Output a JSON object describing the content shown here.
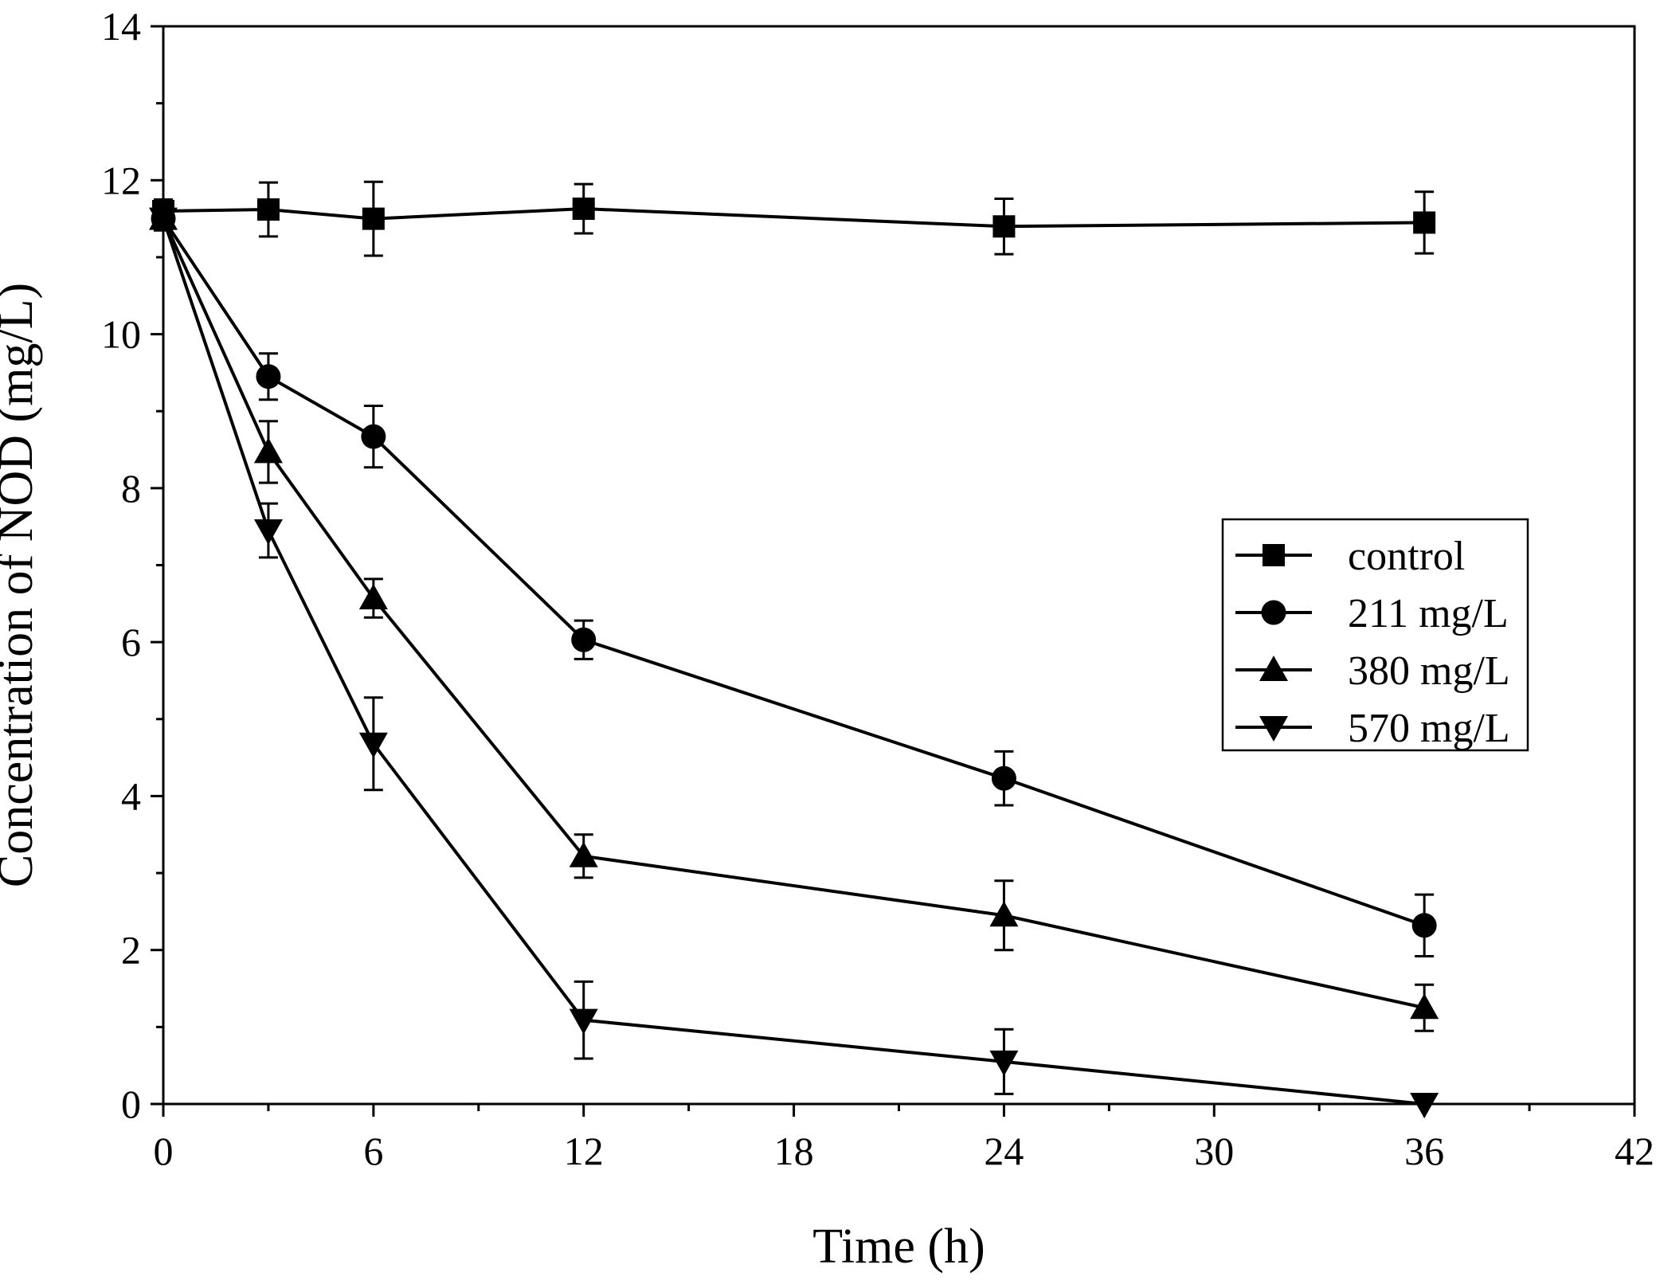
{
  "chart_data": {
    "type": "line",
    "title": "",
    "xlabel": "Time (h)",
    "ylabel": "Concentration of NOD (mg/L)",
    "xlim": [
      0,
      42
    ],
    "ylim": [
      0,
      14
    ],
    "xticks": [
      0,
      6,
      12,
      18,
      24,
      30,
      36,
      42
    ],
    "yticks": [
      0,
      2,
      4,
      6,
      8,
      10,
      12,
      14
    ],
    "xtick_labels": [
      "0",
      "6",
      "12",
      "18",
      "24",
      "30",
      "36",
      "42"
    ],
    "ytick_labels": [
      "0",
      "2",
      "4",
      "6",
      "8",
      "10",
      "12",
      "14"
    ],
    "grid": false,
    "legend_position": "center-right",
    "x": [
      0,
      3,
      6,
      12,
      24,
      36
    ],
    "series": [
      {
        "name": "control",
        "marker": "square",
        "values": [
          11.6,
          11.62,
          11.5,
          11.63,
          11.4,
          11.45
        ],
        "errors": [
          0.15,
          0.35,
          0.48,
          0.32,
          0.36,
          0.4
        ]
      },
      {
        "name": "211 mg/L",
        "marker": "circle",
        "values": [
          11.5,
          9.45,
          8.67,
          6.03,
          4.23,
          2.32
        ],
        "errors": [
          0.15,
          0.3,
          0.4,
          0.25,
          0.35,
          0.4
        ]
      },
      {
        "name": "380 mg/L",
        "marker": "triangle-up",
        "values": [
          11.5,
          8.47,
          6.57,
          3.22,
          2.45,
          1.25
        ],
        "errors": [
          0.15,
          0.4,
          0.25,
          0.28,
          0.45,
          0.3
        ]
      },
      {
        "name": "570 mg/L",
        "marker": "triangle-down",
        "values": [
          11.5,
          7.45,
          4.68,
          1.09,
          0.55,
          0.0
        ],
        "errors": [
          0.15,
          0.35,
          0.6,
          0.5,
          0.42,
          0.0
        ]
      }
    ]
  }
}
